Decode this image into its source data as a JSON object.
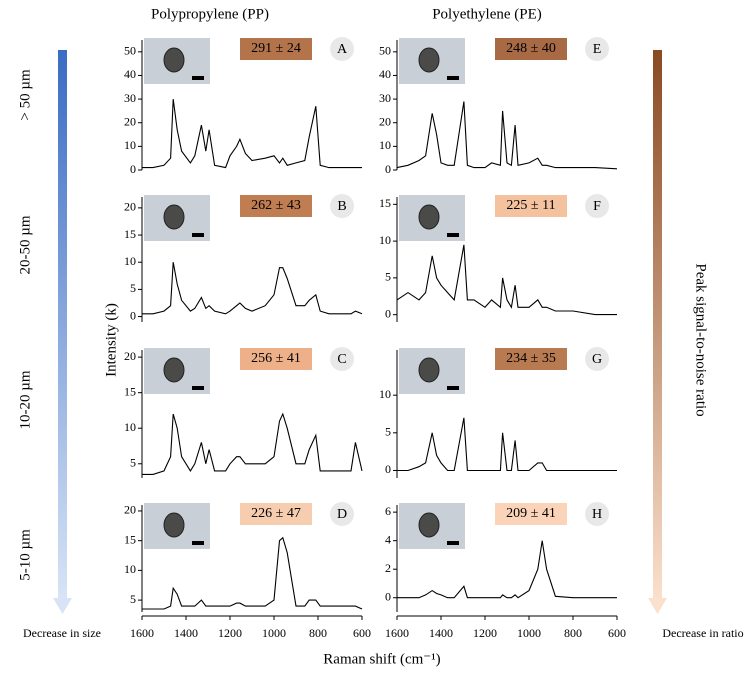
{
  "figure": {
    "column_titles": [
      "Polypropylene (PP)",
      "Polyethylene (PE)"
    ],
    "row_labels": [
      "> 50 µm",
      "20-50 µm",
      "10-20 µm",
      "5-10 µm"
    ],
    "left_arrow_label": "Decrease in size",
    "right_arrow_label": "Decrease in ratio",
    "right_axis_label": "Peak signal-to-noise ratio",
    "y_label": "Intensity (k)",
    "x_label": "Raman shift (cm⁻¹)"
  },
  "chart_data": [
    {
      "type": "line",
      "panel": "A",
      "ratio_label": "291 ± 24",
      "badge_color": "#b3744c",
      "color": "#000000",
      "xlim": [
        1600,
        600
      ],
      "ylim": [
        0,
        55
      ],
      "yticks": [
        0,
        10,
        20,
        30,
        40,
        50
      ],
      "x": [
        1600,
        1550,
        1500,
        1470,
        1458,
        1440,
        1420,
        1380,
        1360,
        1330,
        1310,
        1295,
        1270,
        1220,
        1200,
        1170,
        1155,
        1130,
        1100,
        1040,
        1000,
        975,
        960,
        940,
        900,
        860,
        840,
        810,
        790,
        750,
        700,
        650,
        630,
        600
      ],
      "values": [
        1,
        1,
        2,
        5,
        30,
        17,
        8,
        3,
        6,
        19,
        8,
        17,
        2,
        1,
        6,
        10,
        13,
        7,
        4,
        5,
        6,
        3,
        5,
        2,
        3,
        4,
        14,
        27,
        2,
        1,
        1,
        1,
        1,
        1
      ]
    },
    {
      "type": "line",
      "panel": "B",
      "ratio_label": "262 ± 43",
      "badge_color": "#c07d52",
      "color": "#000000",
      "xlim": [
        1600,
        600
      ],
      "ylim": [
        -1,
        22
      ],
      "yticks": [
        0,
        5,
        10,
        15,
        20
      ],
      "x": [
        1600,
        1550,
        1500,
        1470,
        1458,
        1440,
        1420,
        1380,
        1360,
        1330,
        1310,
        1295,
        1270,
        1220,
        1200,
        1170,
        1155,
        1130,
        1100,
        1040,
        1000,
        975,
        960,
        940,
        900,
        860,
        840,
        810,
        790,
        750,
        700,
        650,
        630,
        600
      ],
      "values": [
        0.5,
        0.5,
        1,
        2,
        10,
        6,
        3,
        1,
        1.5,
        3.5,
        1.5,
        2,
        1,
        0.5,
        1,
        2,
        2.5,
        1.5,
        1,
        2,
        4,
        9,
        9,
        7,
        2,
        2,
        3,
        4,
        1,
        0.5,
        0.5,
        0.5,
        1,
        0.5
      ]
    },
    {
      "type": "line",
      "panel": "C",
      "ratio_label": "256 ± 41",
      "badge_color": "#eeb088",
      "color": "#000000",
      "xlim": [
        1600,
        600
      ],
      "ylim": [
        3,
        21
      ],
      "yticks": [
        5,
        10,
        15,
        20
      ],
      "x": [
        1600,
        1550,
        1500,
        1470,
        1458,
        1440,
        1420,
        1380,
        1360,
        1330,
        1310,
        1295,
        1270,
        1220,
        1200,
        1170,
        1155,
        1130,
        1100,
        1040,
        1000,
        975,
        960,
        940,
        900,
        860,
        840,
        810,
        790,
        750,
        700,
        650,
        630,
        600
      ],
      "values": [
        3.5,
        3.5,
        4,
        6,
        12,
        10,
        6,
        4,
        5,
        8,
        5,
        7,
        4,
        4,
        5,
        6,
        6,
        5,
        5,
        5,
        6,
        11,
        12,
        10,
        5,
        5,
        7,
        9,
        4,
        4,
        4,
        4,
        8,
        4
      ]
    },
    {
      "type": "line",
      "panel": "D",
      "ratio_label": "226 ± 47",
      "badge_color": "#f7cdb0",
      "color": "#000000",
      "xlim": [
        1600,
        600
      ],
      "ylim": [
        3,
        21
      ],
      "yticks": [
        5,
        10,
        15,
        20
      ],
      "xticks": [
        1600,
        1400,
        1200,
        1000,
        800,
        600
      ],
      "x": [
        1600,
        1550,
        1500,
        1470,
        1458,
        1440,
        1420,
        1380,
        1360,
        1330,
        1310,
        1295,
        1270,
        1220,
        1200,
        1170,
        1155,
        1130,
        1100,
        1040,
        1000,
        975,
        960,
        940,
        900,
        860,
        840,
        810,
        790,
        750,
        700,
        650,
        630,
        600
      ],
      "values": [
        3.5,
        3.5,
        3.5,
        4,
        7,
        6,
        4,
        4,
        4,
        5,
        4,
        4,
        4,
        4,
        4,
        4.5,
        4.5,
        4,
        4,
        4,
        5,
        15,
        15.5,
        13,
        4,
        4,
        5,
        5,
        4,
        4,
        4,
        4,
        4,
        3.5
      ]
    },
    {
      "type": "line",
      "panel": "E",
      "ratio_label": "248 ± 40",
      "badge_color": "#a86a45",
      "color": "#000000",
      "xlim": [
        1600,
        600
      ],
      "ylim": [
        0,
        55
      ],
      "yticks": [
        0,
        10,
        20,
        30,
        40,
        50
      ],
      "x": [
        1600,
        1550,
        1500,
        1470,
        1440,
        1420,
        1400,
        1370,
        1340,
        1296,
        1280,
        1250,
        1200,
        1170,
        1130,
        1120,
        1100,
        1080,
        1063,
        1050,
        1000,
        960,
        940,
        920,
        880,
        800,
        700,
        600
      ],
      "values": [
        1,
        2,
        4,
        6,
        24,
        15,
        3,
        2,
        2,
        29,
        2,
        1,
        1,
        3,
        2,
        25,
        3,
        2,
        19,
        2,
        3,
        5,
        2,
        2,
        1,
        1,
        1,
        0.5
      ]
    },
    {
      "type": "line",
      "panel": "F",
      "ratio_label": "225 ± 11",
      "badge_color": "#f5c2a0",
      "color": "#000000",
      "xlim": [
        1600,
        600
      ],
      "ylim": [
        -1,
        16
      ],
      "yticks": [
        0,
        5,
        10,
        15
      ],
      "x": [
        1600,
        1550,
        1500,
        1470,
        1440,
        1420,
        1400,
        1370,
        1340,
        1296,
        1280,
        1250,
        1200,
        1170,
        1130,
        1120,
        1100,
        1080,
        1063,
        1050,
        1000,
        960,
        940,
        920,
        880,
        800,
        700,
        600
      ],
      "values": [
        2,
        3,
        2,
        3,
        8,
        5,
        4,
        3,
        2,
        9.5,
        2,
        2,
        1,
        2,
        1,
        5,
        2,
        1,
        4,
        1,
        1,
        2,
        1,
        1,
        0.5,
        0.5,
        0,
        0
      ]
    },
    {
      "type": "line",
      "panel": "G",
      "ratio_label": "234 ± 35",
      "badge_color": "#b87a50",
      "color": "#000000",
      "xlim": [
        1600,
        600
      ],
      "ylim": [
        -1,
        16
      ],
      "yticks": [
        0,
        5,
        10
      ],
      "x": [
        1600,
        1550,
        1500,
        1470,
        1440,
        1420,
        1400,
        1370,
        1340,
        1296,
        1280,
        1250,
        1200,
        1170,
        1130,
        1120,
        1100,
        1080,
        1063,
        1050,
        1000,
        960,
        940,
        920,
        880,
        800,
        700,
        600
      ],
      "values": [
        0,
        0,
        0.5,
        1,
        5,
        2,
        1,
        0,
        0,
        7,
        0,
        0,
        0,
        0,
        0,
        5,
        0,
        0,
        4,
        0,
        0,
        1,
        1,
        0,
        0,
        0,
        0,
        0
      ]
    },
    {
      "type": "line",
      "panel": "H",
      "ratio_label": "209 ± 41",
      "badge_color": "#fad3b8",
      "color": "#000000",
      "xlim": [
        1600,
        600
      ],
      "ylim": [
        -1,
        6.5
      ],
      "yticks": [
        0,
        2,
        4,
        6
      ],
      "xticks": [
        1600,
        1400,
        1200,
        1000,
        800,
        600
      ],
      "x": [
        1600,
        1550,
        1500,
        1470,
        1440,
        1420,
        1400,
        1370,
        1340,
        1296,
        1280,
        1250,
        1200,
        1170,
        1130,
        1120,
        1100,
        1080,
        1063,
        1050,
        1000,
        960,
        940,
        920,
        880,
        800,
        700,
        600
      ],
      "values": [
        0,
        0,
        0,
        0.2,
        0.5,
        0.3,
        0.2,
        0,
        0,
        0.8,
        0,
        0,
        0,
        0,
        0,
        0.2,
        0,
        0,
        0.2,
        0,
        0.5,
        2,
        4,
        2,
        0.1,
        0,
        0,
        0
      ]
    }
  ]
}
